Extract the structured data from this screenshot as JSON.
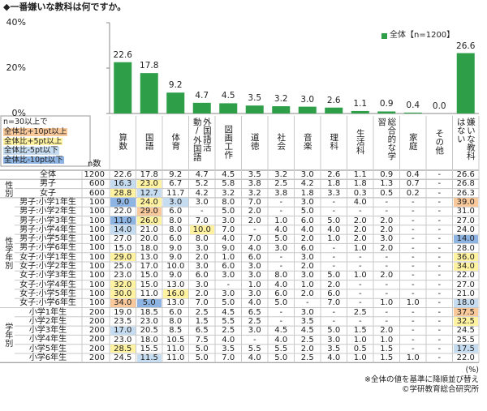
{
  "title": "◆一番嫌いな教科は何ですか。",
  "chart_data": {
    "type": "bar",
    "categories": [
      "算数",
      "国語",
      "体育",
      "外国語活動/外国語",
      "図画工作",
      "道徳",
      "社会",
      "音楽",
      "理科",
      "生活科",
      "総合的な学習",
      "家庭",
      "その他",
      "嫌いな教科はない"
    ],
    "series": [
      {
        "name": "全体【n=1200】",
        "color": "#2e9e48",
        "values": [
          22.6,
          17.8,
          9.2,
          4.7,
          4.5,
          3.5,
          3.2,
          3.0,
          2.6,
          1.1,
          0.9,
          0.4,
          0.0,
          26.6
        ],
        "value_labels": [
          "22.6",
          "17.8",
          "9.2",
          "4.7",
          "4.5",
          "3.5",
          "3.2",
          "3.0",
          "2.6",
          "1.1",
          "0.9",
          "0.4",
          "0.0",
          "26.6"
        ]
      }
    ],
    "ylim": [
      0,
      40
    ],
    "yticks": [
      {
        "value": 0,
        "label": "0%"
      },
      {
        "value": 20,
        "label": "20%"
      },
      {
        "value": 40,
        "label": "40%"
      }
    ],
    "legend": "top-right"
  },
  "table": {
    "legend": {
      "title": "n=30以上で",
      "items": [
        {
          "label": "全体比+10pt以上",
          "color": "#f9c89b"
        },
        {
          "label": "全体比+5pt以上",
          "color": "#fff2a0"
        },
        {
          "label": "全体比-5pt以下",
          "color": "#c6dcf0"
        },
        {
          "label": "全体比-10pt以下",
          "color": "#8db4e2"
        }
      ]
    },
    "n_header": "n数",
    "total": {
      "label": "全体",
      "n": "1200",
      "values": [
        "22.6",
        "17.8",
        "9.2",
        "4.7",
        "4.5",
        "3.5",
        "3.2",
        "3.0",
        "2.6",
        "1.1",
        "0.9",
        "0.4",
        "-",
        "26.6"
      ]
    },
    "groups": [
      {
        "label": "性別",
        "rows": [
          {
            "label": "男子",
            "n": "600",
            "values": [
              "16.3",
              "23.0",
              "6.7",
              "5.2",
              "5.8",
              "3.8",
              "2.5",
              "4.2",
              "1.8",
              "1.8",
              "1.3",
              "0.7",
              "-",
              "26.8"
            ],
            "highlight": [
              "#c6dcf0",
              "#fff2a0",
              null,
              null,
              null,
              null,
              null,
              null,
              null,
              null,
              null,
              null,
              null,
              null
            ]
          },
          {
            "label": "女子",
            "n": "600",
            "values": [
              "28.8",
              "12.7",
              "11.7",
              "4.2",
              "3.2",
              "3.2",
              "3.8",
              "1.8",
              "3.3",
              "0.3",
              "0.5",
              "0.2",
              "-",
              "26.3"
            ],
            "highlight": [
              "#fff2a0",
              "#c6dcf0",
              null,
              null,
              null,
              null,
              null,
              null,
              null,
              null,
              null,
              null,
              null,
              null
            ]
          }
        ]
      },
      {
        "label": "性学年別",
        "rows": [
          {
            "label": "男子:小学1年生",
            "n": "100",
            "values": [
              "9.0",
              "24.0",
              "3.0",
              "3.0",
              "8.0",
              "7.0",
              "-",
              "3.0",
              "-",
              "4.0",
              "-",
              "-",
              "-",
              "39.0"
            ],
            "highlight": [
              "#8db4e2",
              "#fff2a0",
              "#c6dcf0",
              null,
              null,
              null,
              null,
              null,
              null,
              null,
              null,
              null,
              null,
              "#f9c89b"
            ]
          },
          {
            "label": "男子:小学2年生",
            "n": "100",
            "values": [
              "22.0",
              "29.0",
              "6.0",
              "-",
              "5.0",
              "2.0",
              "-",
              "5.0",
              "-",
              "-",
              "-",
              "-",
              "-",
              "31.0"
            ],
            "highlight": [
              null,
              "#f9c89b",
              null,
              null,
              null,
              null,
              null,
              null,
              null,
              null,
              null,
              null,
              null,
              null
            ]
          },
          {
            "label": "男子:小学3年生",
            "n": "100",
            "values": [
              "11.0",
              "26.0",
              "8.0",
              "7.0",
              "3.0",
              "2.0",
              "1.0",
              "6.0",
              "5.0",
              "2.0",
              "2.0",
              "-",
              "-",
              "27.0"
            ],
            "highlight": [
              "#8db4e2",
              "#fff2a0",
              null,
              null,
              null,
              null,
              null,
              null,
              null,
              null,
              null,
              null,
              null,
              null
            ]
          },
          {
            "label": "男子:小学4年生",
            "n": "100",
            "values": [
              "14.0",
              "21.0",
              "8.0",
              "10.0",
              "7.0",
              "-",
              "4.0",
              "4.0",
              "4.0",
              "2.0",
              "2.0",
              "-",
              "-",
              "24.0"
            ],
            "highlight": [
              "#c6dcf0",
              null,
              null,
              "#fff2a0",
              null,
              null,
              null,
              null,
              null,
              null,
              null,
              null,
              null,
              null
            ]
          },
          {
            "label": "男子:小学5年生",
            "n": "100",
            "values": [
              "27.0",
              "20.0",
              "6.0",
              "8.0",
              "4.0",
              "7.0",
              "5.0",
              "2.0",
              "1.0",
              "2.0",
              "3.0",
              "-",
              "-",
              "14.0"
            ],
            "highlight": [
              null,
              null,
              null,
              null,
              null,
              null,
              null,
              null,
              null,
              null,
              null,
              null,
              null,
              "#8db4e2"
            ]
          },
          {
            "label": "男子:小学6年生",
            "n": "100",
            "values": [
              "15.0",
              "18.0",
              "9.0",
              "3.0",
              "9.0",
              "4.0",
              "3.0",
              "6.0",
              "-",
              "1.0",
              "2.0",
              "-",
              "-",
              "28.0"
            ],
            "highlight": [
              null,
              null,
              null,
              null,
              null,
              null,
              null,
              null,
              null,
              null,
              null,
              null,
              null,
              null
            ]
          },
          {
            "label": "女子:小学1年生",
            "n": "100",
            "values": [
              "29.0",
              "13.0",
              "9.0",
              "2.0",
              "1.0",
              "6.0",
              "-",
              "3.0",
              "-",
              "-",
              "-",
              "-",
              "-",
              "36.0"
            ],
            "highlight": [
              "#fff2a0",
              null,
              null,
              null,
              null,
              null,
              null,
              null,
              null,
              null,
              null,
              null,
              null,
              "#fff2a0"
            ]
          },
          {
            "label": "女子:小学2年生",
            "n": "100",
            "values": [
              "25.0",
              "17.0",
              "10.0",
              "3.0",
              "6.0",
              "3.0",
              "-",
              "2.0",
              "-",
              "-",
              "-",
              "-",
              "-",
              "34.0"
            ],
            "highlight": [
              null,
              null,
              null,
              null,
              null,
              null,
              null,
              null,
              null,
              null,
              null,
              null,
              null,
              "#fff2a0"
            ]
          },
          {
            "label": "女子:小学3年生",
            "n": "100",
            "values": [
              "23.0",
              "15.0",
              "9.0",
              "6.0",
              "3.0",
              "3.0",
              "8.0",
              "3.0",
              "5.0",
              "1.0",
              "2.0",
              "-",
              "-",
              "22.0"
            ],
            "highlight": [
              null,
              null,
              null,
              null,
              null,
              null,
              null,
              null,
              null,
              null,
              null,
              null,
              null,
              null
            ]
          },
          {
            "label": "女子:小学4年生",
            "n": "100",
            "values": [
              "32.0",
              "15.0",
              "13.0",
              "3.0",
              "-",
              "1.0",
              "4.0",
              "1.0",
              "2.0",
              "-",
              "-",
              "-",
              "-",
              "27.0"
            ],
            "highlight": [
              "#fff2a0",
              null,
              null,
              null,
              null,
              null,
              null,
              null,
              null,
              null,
              null,
              null,
              null,
              null
            ]
          },
          {
            "label": "女子:小学5年生",
            "n": "100",
            "values": [
              "30.0",
              "11.0",
              "16.0",
              "2.0",
              "3.0",
              "3.0",
              "6.0",
              "2.0",
              "6.0",
              "-",
              "-",
              "-",
              "-",
              "21.0"
            ],
            "highlight": [
              "#fff2a0",
              null,
              "#fff2a0",
              null,
              null,
              null,
              null,
              null,
              null,
              null,
              null,
              null,
              null,
              null
            ]
          },
          {
            "label": "女子:小学6年生",
            "n": "100",
            "values": [
              "34.0",
              "5.0",
              "13.0",
              "7.0",
              "5.0",
              "4.0",
              "5.0",
              "-",
              "7.0",
              "-",
              "1.0",
              "1.0",
              "-",
              "18.0"
            ],
            "highlight": [
              "#f9c89b",
              "#8db4e2",
              null,
              null,
              null,
              null,
              null,
              null,
              null,
              null,
              null,
              null,
              null,
              "#c6dcf0"
            ]
          }
        ]
      },
      {
        "label": "学年別",
        "rows": [
          {
            "label": "小学1年生",
            "n": "200",
            "values": [
              "19.0",
              "18.5",
              "6.0",
              "2.5",
              "4.5",
              "6.5",
              "-",
              "3.0",
              "-",
              "2.5",
              "-",
              "-",
              "-",
              "37.5"
            ],
            "highlight": [
              null,
              null,
              null,
              null,
              null,
              null,
              null,
              null,
              null,
              null,
              null,
              null,
              null,
              "#f9c89b"
            ]
          },
          {
            "label": "小学2年生",
            "n": "200",
            "values": [
              "23.5",
              "23.0",
              "8.0",
              "1.5",
              "5.5",
              "2.5",
              "-",
              "3.5",
              "-",
              "-",
              "-",
              "-",
              "-",
              "32.5"
            ],
            "highlight": [
              null,
              null,
              null,
              null,
              null,
              null,
              null,
              null,
              null,
              null,
              null,
              null,
              null,
              "#fff2a0"
            ]
          },
          {
            "label": "小学3年生",
            "n": "200",
            "values": [
              "17.0",
              "20.5",
              "8.5",
              "6.5",
              "2.5",
              "3.0",
              "4.5",
              "4.5",
              "5.0",
              "1.5",
              "2.0",
              "-",
              "-",
              "24.5"
            ],
            "highlight": [
              "#c6dcf0",
              null,
              null,
              null,
              null,
              null,
              null,
              null,
              null,
              null,
              null,
              null,
              null,
              null
            ]
          },
          {
            "label": "小学4年生",
            "n": "200",
            "values": [
              "23.0",
              "18.0",
              "10.5",
              "7.5",
              "4.0",
              "-",
              "4.0",
              "2.5",
              "3.0",
              "1.0",
              "1.0",
              "-",
              "-",
              "25.5"
            ],
            "highlight": [
              null,
              null,
              null,
              null,
              null,
              null,
              null,
              null,
              null,
              null,
              null,
              null,
              null,
              null
            ]
          },
          {
            "label": "小学5年生",
            "n": "200",
            "values": [
              "28.5",
              "15.5",
              "11.0",
              "5.0",
              "3.5",
              "5.5",
              "5.5",
              "2.0",
              "3.5",
              "0.5",
              "1.5",
              "-",
              "-",
              "17.5"
            ],
            "highlight": [
              "#fff2a0",
              null,
              null,
              null,
              null,
              null,
              null,
              null,
              null,
              null,
              null,
              null,
              null,
              "#c6dcf0"
            ]
          },
          {
            "label": "小学6年生",
            "n": "200",
            "values": [
              "24.5",
              "11.5",
              "11.0",
              "5.0",
              "7.0",
              "4.0",
              "5.0",
              "2.5",
              "4.0",
              "1.0",
              "1.5",
              "1.0",
              "-",
              "22.0"
            ],
            "highlight": [
              null,
              "#c6dcf0",
              null,
              null,
              null,
              null,
              null,
              null,
              null,
              null,
              null,
              null,
              null,
              null
            ]
          }
        ]
      }
    ]
  },
  "footer": {
    "unit": "(%)",
    "note": "※全体の値を基準に降順並び替え",
    "credit": "©学研教育総合研究所"
  }
}
